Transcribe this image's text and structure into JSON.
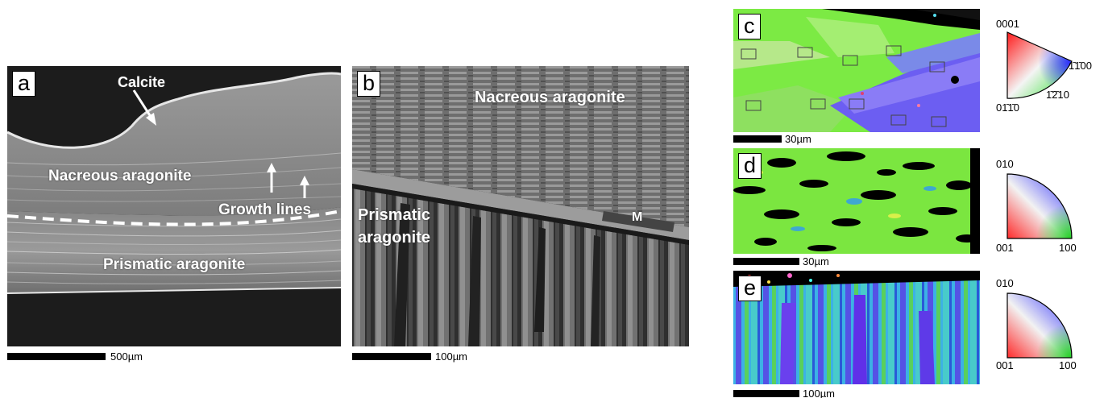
{
  "panels": {
    "a": {
      "label": "a",
      "annotations": {
        "calcite": "Calcite",
        "nacreous": "Nacreous aragonite",
        "growth_lines": "Growth lines",
        "prismatic": "Prismatic aragonite"
      },
      "scale": "500µm"
    },
    "b": {
      "label": "b",
      "annotations": {
        "nacreous": "Nacreous aragonite",
        "prismatic_1": "Prismatic",
        "prismatic_2": "aragonite",
        "m": "M"
      },
      "scale": "100µm"
    },
    "c": {
      "label": "c",
      "scale": "30µm",
      "ipf": {
        "top": "0001",
        "right": "1̄1̄00",
        "middle": "1̄2̄10",
        "bottom_left": "01̄1̄0"
      }
    },
    "d": {
      "label": "d",
      "scale": "30µm",
      "ipf": {
        "top": "010",
        "bottom_left": "001",
        "bottom_right": "100"
      }
    },
    "e": {
      "label": "e",
      "scale": "100µm",
      "ipf": {
        "top": "010",
        "bottom_left": "001",
        "bottom_right": "100"
      }
    }
  },
  "colors": {
    "sem_dark": "#1e1e1e",
    "sem_mid": "#7a7a7a",
    "ebsd_green": "#74ee3e",
    "ebsd_blue": "#6d5cf0",
    "ebsd_black": "#000000"
  }
}
